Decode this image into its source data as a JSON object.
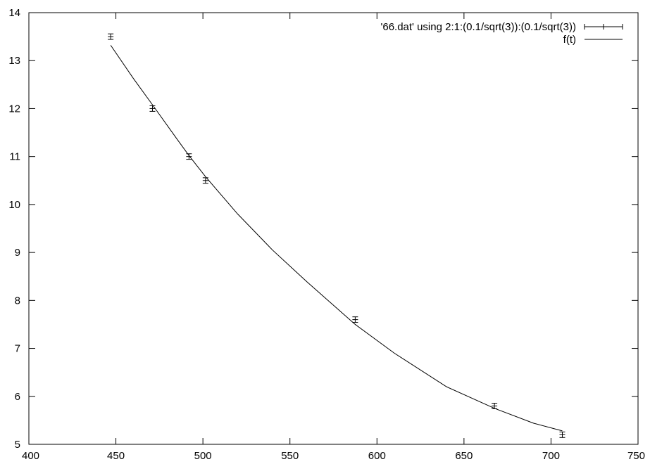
{
  "chart_data": {
    "type": "scatter",
    "title": "",
    "xlabel": "",
    "ylabel": "",
    "xlim": [
      400,
      750
    ],
    "ylim": [
      5,
      14
    ],
    "x_ticks": [
      400,
      450,
      500,
      550,
      600,
      650,
      700,
      750
    ],
    "y_ticks": [
      5,
      6,
      7,
      8,
      9,
      10,
      11,
      12,
      13,
      14
    ],
    "x_tick_labels": [
      "400",
      "450",
      "500",
      "550",
      "600",
      "650",
      "700",
      "750"
    ],
    "y_tick_labels": [
      "5",
      "6",
      "7",
      "8",
      "9",
      "10",
      "11",
      "12",
      "13",
      "14"
    ],
    "grid": false,
    "legend_position": "top-right",
    "series": [
      {
        "name": "'66.dat' using 2:1:(0.1/sqrt(3)):(0.1/sqrt(3))",
        "kind": "errorbars",
        "color": "#000000",
        "points": [
          {
            "x": 447,
            "y": 13.5,
            "err": 0.0577
          },
          {
            "x": 471,
            "y": 12.0,
            "err": 0.0577
          },
          {
            "x": 492,
            "y": 11.0,
            "err": 0.0577
          },
          {
            "x": 501.5,
            "y": 10.5,
            "err": 0.0577
          },
          {
            "x": 587.5,
            "y": 7.6,
            "err": 0.0577
          },
          {
            "x": 667.5,
            "y": 5.8,
            "err": 0.0577
          },
          {
            "x": 706.5,
            "y": 5.2,
            "err": 0.0577
          }
        ]
      },
      {
        "name": "f(t)",
        "kind": "line",
        "color": "#000000",
        "points": [
          {
            "x": 447,
            "y": 13.32
          },
          {
            "x": 460,
            "y": 12.63
          },
          {
            "x": 471,
            "y": 12.08
          },
          {
            "x": 485,
            "y": 11.37
          },
          {
            "x": 492,
            "y": 11.02
          },
          {
            "x": 501.5,
            "y": 10.58
          },
          {
            "x": 520,
            "y": 9.8
          },
          {
            "x": 540,
            "y": 9.05
          },
          {
            "x": 560,
            "y": 8.38
          },
          {
            "x": 587.5,
            "y": 7.5
          },
          {
            "x": 610,
            "y": 6.9
          },
          {
            "x": 640,
            "y": 6.2
          },
          {
            "x": 667.5,
            "y": 5.75
          },
          {
            "x": 690,
            "y": 5.44
          },
          {
            "x": 706.5,
            "y": 5.28
          }
        ]
      }
    ]
  }
}
